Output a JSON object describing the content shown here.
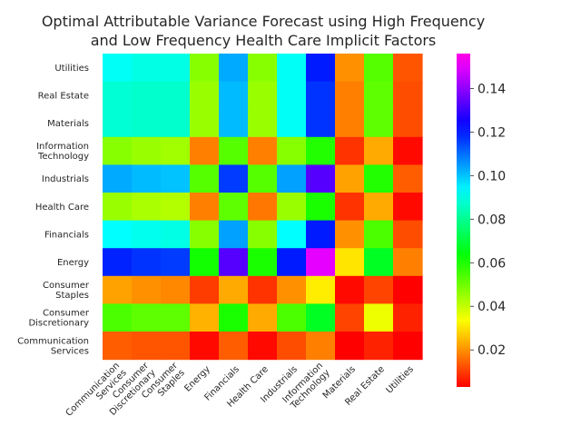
{
  "chart_data": {
    "type": "heatmap",
    "title": "Optimal Attributable Variance Forecast using High Frequency\nand Low Frequency Health Care Implicit Factors",
    "colormap": "gist_rainbow_r",
    "color_range": [
      0.003,
      0.156
    ],
    "colorbar_ticks": [
      "0.02",
      "0.04",
      "0.06",
      "0.08",
      "0.10",
      "0.12",
      "0.14"
    ],
    "colorbar_tick_values": [
      0.02,
      0.04,
      0.06,
      0.08,
      0.1,
      0.12,
      0.14
    ],
    "x_labels": [
      "Communication\nServices",
      "Consumer\nDiscretionary",
      "Consumer\nStaples",
      "Energy",
      "Financials",
      "Health Care",
      "Industrials",
      "Information\nTechnology",
      "Materials",
      "Real Estate",
      "Utilities"
    ],
    "y_labels": [
      "Utilities",
      "Real Estate",
      "Materials",
      "Information\nTechnology",
      "Industrials",
      "Health Care",
      "Financials",
      "Energy",
      "Consumer\nStaples",
      "Consumer\nDiscretionary",
      "Communication\nServices"
    ],
    "values": [
      [
        0.092,
        0.09,
        0.09,
        0.047,
        0.103,
        0.047,
        0.092,
        0.12,
        0.02,
        0.053,
        0.013
      ],
      [
        0.088,
        0.087,
        0.087,
        0.045,
        0.101,
        0.045,
        0.092,
        0.117,
        0.018,
        0.052,
        0.012
      ],
      [
        0.088,
        0.087,
        0.087,
        0.045,
        0.101,
        0.045,
        0.092,
        0.117,
        0.018,
        0.052,
        0.012
      ],
      [
        0.047,
        0.045,
        0.044,
        0.018,
        0.053,
        0.018,
        0.047,
        0.059,
        0.009,
        0.023,
        0.004
      ],
      [
        0.103,
        0.101,
        0.1,
        0.053,
        0.116,
        0.053,
        0.104,
        0.133,
        0.022,
        0.059,
        0.014
      ],
      [
        0.045,
        0.043,
        0.042,
        0.018,
        0.052,
        0.017,
        0.045,
        0.06,
        0.009,
        0.023,
        0.004
      ],
      [
        0.093,
        0.091,
        0.09,
        0.047,
        0.104,
        0.047,
        0.093,
        0.12,
        0.02,
        0.054,
        0.012
      ],
      [
        0.119,
        0.117,
        0.116,
        0.061,
        0.133,
        0.06,
        0.12,
        0.15,
        0.03,
        0.067,
        0.018
      ],
      [
        0.022,
        0.02,
        0.019,
        0.01,
        0.023,
        0.009,
        0.02,
        0.031,
        0.004,
        0.011,
        0.003
      ],
      [
        0.054,
        0.052,
        0.052,
        0.024,
        0.06,
        0.023,
        0.054,
        0.067,
        0.011,
        0.035,
        0.007
      ],
      [
        0.014,
        0.013,
        0.013,
        0.004,
        0.014,
        0.004,
        0.012,
        0.018,
        0.003,
        0.007,
        0.002
      ]
    ]
  }
}
